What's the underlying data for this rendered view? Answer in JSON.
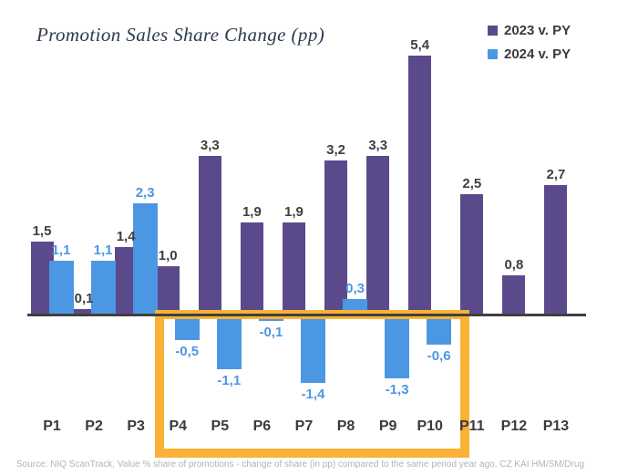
{
  "title": "Promotion Sales Share Change (pp)",
  "chart_data": {
    "type": "bar",
    "title": "Promotion Sales Share Change (pp)",
    "categories": [
      "P1",
      "P2",
      "P3",
      "P4",
      "P5",
      "P6",
      "P7",
      "P8",
      "P9",
      "P10",
      "P11",
      "P12",
      "P13"
    ],
    "series": [
      {
        "name": "2023 v. PY",
        "color": "#5b4a8b",
        "values": [
          1.5,
          0.1,
          1.4,
          1.0,
          3.3,
          1.9,
          1.9,
          3.2,
          3.3,
          5.4,
          2.5,
          0.8,
          2.7
        ]
      },
      {
        "name": "2024 v. PY",
        "color": "#4c97e4",
        "values": [
          1.1,
          1.1,
          2.3,
          -0.5,
          -1.1,
          -0.1,
          -1.4,
          0.3,
          -1.3,
          -0.6,
          null,
          null,
          null
        ]
      }
    ],
    "ylim": [
      -1.6,
      5.6
    ],
    "grid": false,
    "legend_position": "top-right",
    "value_label_decimal_separator": ",",
    "value_label_color_2023": "#3f3f3f",
    "annotations": [
      {
        "type": "rect-highlight",
        "color": "#f9b235",
        "from_category": "P4",
        "to_category": "P10"
      }
    ]
  },
  "footer": {
    "source": "Source: NIQ ScanTrack, Value % share of promotions - change of share (in pp) compared to the same period year ago. CZ KAI HM/SM/Drug"
  },
  "colors": {
    "axis": "#404040",
    "highlight": "#f9b235",
    "title_text": "#2b3a4d",
    "category_text": "#3a3a3a",
    "source_text": "#b3b3b3"
  }
}
